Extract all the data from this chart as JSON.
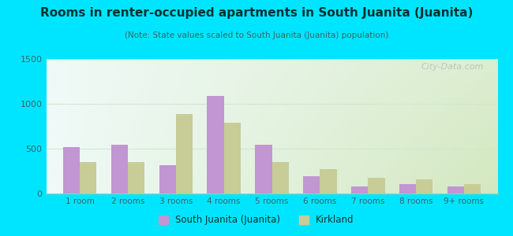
{
  "title": "Rooms in renter-occupied apartments in South Juanita (Juanita)",
  "subtitle": "(Note: State values scaled to South Juanita (Juanita) population)",
  "categories": [
    "1 room",
    "2 rooms",
    "3 rooms",
    "4 rooms",
    "5 rooms",
    "6 rooms",
    "7 rooms",
    "8 rooms",
    "9+ rooms"
  ],
  "south_juanita_values": [
    520,
    540,
    320,
    1090,
    540,
    195,
    75,
    105,
    80
  ],
  "kirkland_values": [
    355,
    355,
    890,
    790,
    350,
    270,
    175,
    160,
    105
  ],
  "south_juanita_color": "#c196d2",
  "kirkland_color": "#c8cc96",
  "background_outer": "#00e5ff",
  "background_plot_topleft": "#f0faf8",
  "background_plot_bottomright": "#d4e8c0",
  "ylim": [
    0,
    1500
  ],
  "yticks": [
    0,
    500,
    1000,
    1500
  ],
  "bar_width": 0.35,
  "legend_south": "South Juanita (Juanita)",
  "legend_kirkland": "Kirkland",
  "watermark": "City-Data.com",
  "title_color": "#003333",
  "subtitle_color": "#336666",
  "tick_color": "#336666",
  "grid_color": "#d0e8d0"
}
